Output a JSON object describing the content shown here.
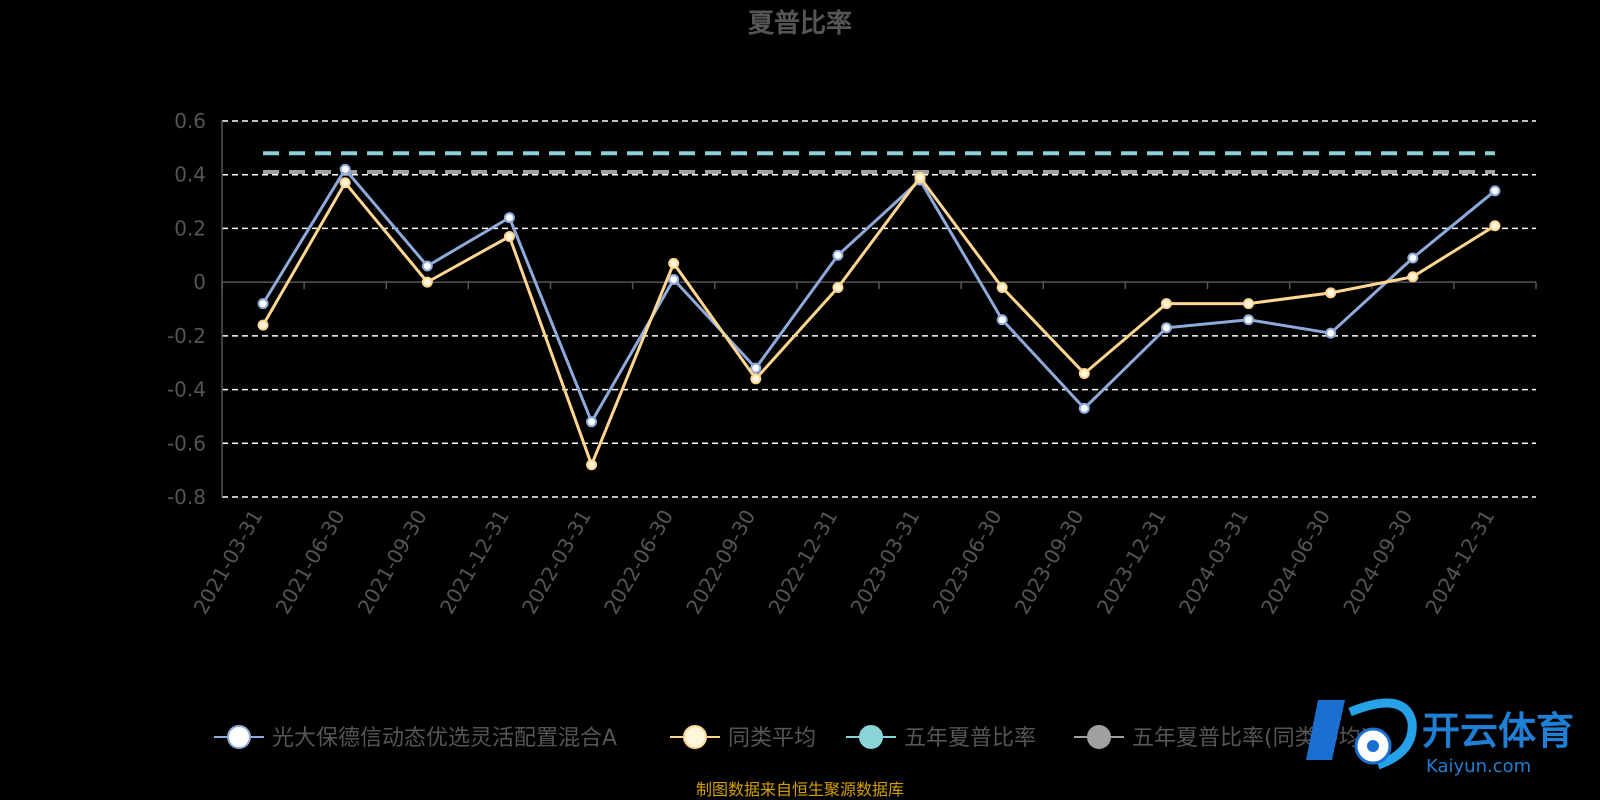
{
  "title": "夏普比率",
  "source": "制图数据来自恒生聚源数据库",
  "logo": {
    "main": "开云体育",
    "sub": "Kaiyun.com"
  },
  "chart_data": {
    "type": "line",
    "categories": [
      "2021-03-31",
      "2021-06-30",
      "2021-09-30",
      "2021-12-31",
      "2022-03-31",
      "2022-06-30",
      "2022-09-30",
      "2022-12-31",
      "2023-03-31",
      "2023-06-30",
      "2023-09-30",
      "2023-12-31",
      "2024-03-31",
      "2024-06-30",
      "2024-09-30",
      "2024-12-31"
    ],
    "ylim": [
      -0.8,
      0.6
    ],
    "yticks": [
      0.6,
      0.4,
      0.2,
      0,
      -0.2,
      -0.4,
      -0.6,
      -0.8
    ],
    "ytick_labels": [
      "0.6",
      "0.4",
      "0.2",
      "0",
      "-0.2",
      "-0.4",
      "-0.6",
      "-0.8"
    ],
    "grid": true,
    "legend_position": "bottom",
    "series": [
      {
        "name": "光大保德信动态优选灵活配置混合A",
        "color": "#8eaadb",
        "marker_fill": "#ffffff",
        "values": [
          -0.08,
          0.42,
          0.06,
          0.24,
          -0.52,
          0.01,
          -0.32,
          0.1,
          0.38,
          -0.14,
          -0.47,
          -0.17,
          -0.14,
          -0.19,
          0.09,
          0.34
        ]
      },
      {
        "name": "同类平均",
        "color": "#ffd591",
        "marker_fill": "#fff6dc",
        "values": [
          -0.16,
          0.37,
          0.0,
          0.17,
          -0.68,
          0.07,
          -0.36,
          -0.02,
          0.39,
          -0.02,
          -0.34,
          -0.08,
          -0.08,
          -0.04,
          0.02,
          0.21
        ]
      },
      {
        "name": "五年夏普比率",
        "color": "#8ad3d8",
        "marker_fill": "#8ad3d8",
        "dashed": true,
        "value": 0.48
      },
      {
        "name": "五年夏普比率(同类平均)",
        "color": "#a0a0a0",
        "marker_fill": "#a0a0a0",
        "dashed": true,
        "value": 0.41
      }
    ]
  }
}
